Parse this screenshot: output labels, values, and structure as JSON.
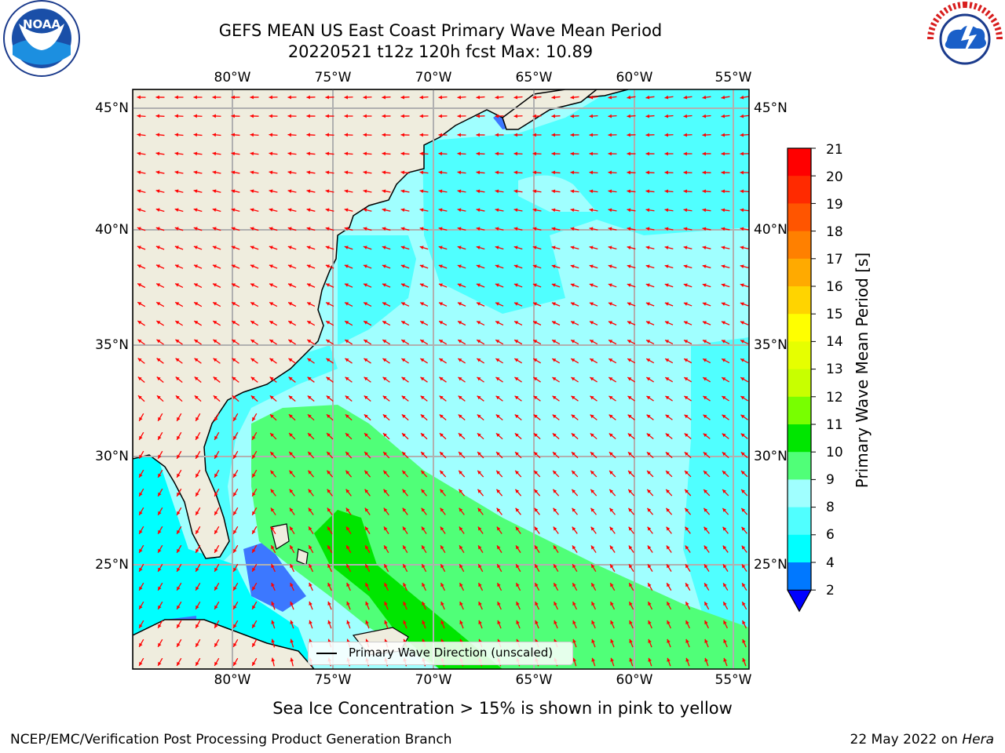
{
  "title": {
    "line1": "GEFS MEAN US East Coast Primary Wave Mean Period",
    "line2": "20220521 t12z 120h fcst   Max: 10.89"
  },
  "axes": {
    "lon_labels": [
      "80°W",
      "75°W",
      "70°W",
      "65°W",
      "60°W",
      "55°W"
    ],
    "lat_labels": [
      "45°N",
      "40°N",
      "35°N",
      "30°N",
      "25°N"
    ]
  },
  "colorbar": {
    "label": "Primary Wave Mean Period [s]",
    "ticks": [
      "21",
      "20",
      "19",
      "18",
      "17",
      "16",
      "15",
      "14",
      "13",
      "12",
      "11",
      "10",
      "9",
      "8",
      "6",
      "4",
      "2"
    ],
    "colors": [
      "#ff0000",
      "#ff2a00",
      "#ff5500",
      "#ff8000",
      "#ffaa00",
      "#ffd400",
      "#ffff00",
      "#e6ff00",
      "#c8ff00",
      "#78ff00",
      "#00e600",
      "#50ff78",
      "#a0ffff",
      "#50ffff",
      "#00ffff",
      "#0078ff"
    ],
    "extend_color": "#0000ff"
  },
  "legend": {
    "label": "Primary Wave Direction (unscaled)"
  },
  "note": "Sea Ice Concentration > 15% is shown in pink to yellow",
  "footer": {
    "credit": "NCEP/EMC/Verification Post Processing Product Generation Branch",
    "date": "22 May 2022 on",
    "machine": "Hera"
  },
  "logos": {
    "left": "NOAA",
    "right": "NATIONAL WEATHER SERVICE"
  },
  "colors": {
    "land": "#efedde",
    "grid": "#b0b0b0",
    "arrow": "#ff0000"
  }
}
